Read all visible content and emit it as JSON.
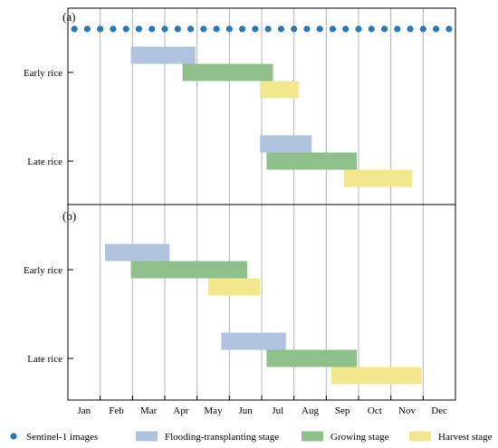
{
  "chart_data": {
    "type": "gantt",
    "months": [
      "Jan",
      "Feb",
      "Mar",
      "Apr",
      "May",
      "Jun",
      "Jul",
      "Aug",
      "Sep",
      "Oct",
      "Nov",
      "Dec"
    ],
    "x_unit": "month",
    "xlim": [
      0,
      12
    ],
    "stage_colors": {
      "flooding": "#afc3de",
      "growing": "#8fbf8a",
      "harvest": "#f2e68e",
      "sentinel": "#2978b5"
    },
    "legend": [
      {
        "key": "sentinel",
        "label": "Sentinel-1 images"
      },
      {
        "key": "flooding",
        "label": "Flooding-transplanting stage"
      },
      {
        "key": "growing",
        "label": "Growing stage"
      },
      {
        "key": "harvest",
        "label": "Harvest stage"
      }
    ],
    "panels": [
      {
        "label": "(a)",
        "sentinel_dates": [
          0.2,
          0.6,
          1.0,
          1.4,
          1.8,
          2.2,
          2.6,
          3.0,
          3.4,
          3.8,
          4.2,
          4.6,
          5.0,
          5.4,
          5.8,
          6.2,
          6.6,
          7.0,
          7.4,
          7.8,
          8.2,
          8.6,
          9.0,
          9.4,
          9.8,
          10.2,
          10.6,
          11.0,
          11.4,
          11.8
        ],
        "rows": [
          {
            "name": "Early rice",
            "stages": [
              {
                "stage": "flooding",
                "start": 1.95,
                "end": 3.95
              },
              {
                "stage": "growing",
                "start": 3.55,
                "end": 6.35
              },
              {
                "stage": "harvest",
                "start": 5.95,
                "end": 7.15
              }
            ]
          },
          {
            "name": "Late rice",
            "stages": [
              {
                "stage": "flooding",
                "start": 5.95,
                "end": 7.55
              },
              {
                "stage": "growing",
                "start": 6.15,
                "end": 8.95
              },
              {
                "stage": "harvest",
                "start": 8.55,
                "end": 10.65
              }
            ]
          }
        ]
      },
      {
        "label": "(b)",
        "rows": [
          {
            "name": "Early rice",
            "stages": [
              {
                "stage": "flooding",
                "start": 1.15,
                "end": 3.15
              },
              {
                "stage": "growing",
                "start": 1.95,
                "end": 5.55
              },
              {
                "stage": "harvest",
                "start": 4.35,
                "end": 5.95
              }
            ]
          },
          {
            "name": "Late rice",
            "stages": [
              {
                "stage": "flooding",
                "start": 4.75,
                "end": 6.75
              },
              {
                "stage": "growing",
                "start": 6.15,
                "end": 8.95
              },
              {
                "stage": "harvest",
                "start": 8.15,
                "end": 10.95
              }
            ]
          }
        ]
      }
    ]
  }
}
